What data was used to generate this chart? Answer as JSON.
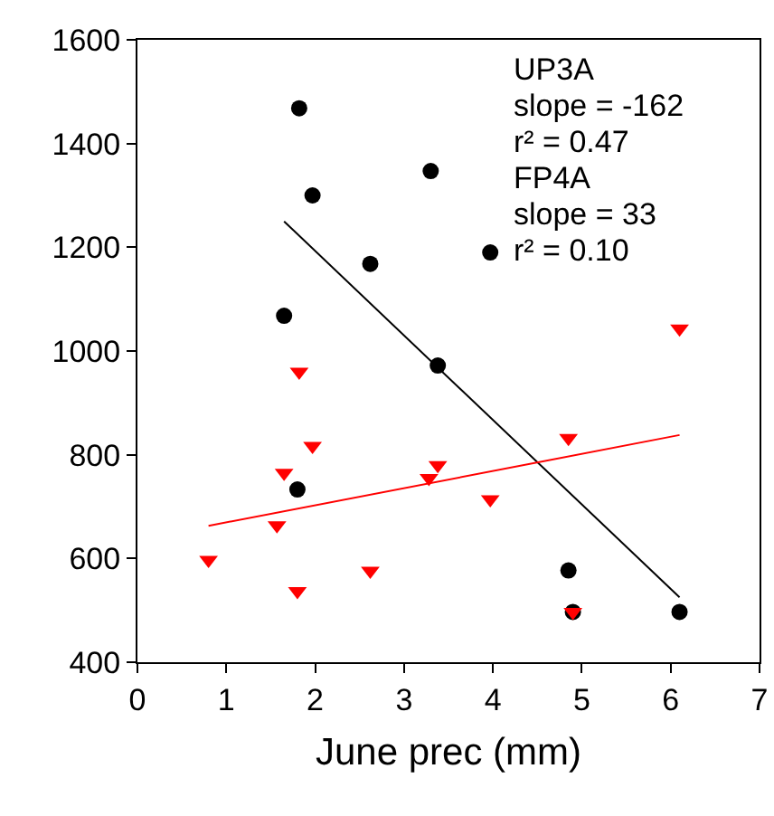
{
  "chart_data": {
    "type": "scatter",
    "xlabel": "June prec (mm)",
    "xlim": [
      0,
      7
    ],
    "xticks": [
      0,
      1,
      2,
      3,
      4,
      5,
      6,
      7
    ],
    "ylim": [
      400,
      1600
    ],
    "yticks": [
      400,
      600,
      800,
      1000,
      1200,
      1400,
      1600
    ],
    "grid": false,
    "annotations": [
      "UP3A",
      "slope = -162",
      "r² = 0.47",
      "FP4A",
      "slope = 33",
      "r² = 0.10"
    ],
    "series": [
      {
        "color": "#000000",
        "marker": "circle",
        "x": [
          1.82,
          1.97,
          3.3,
          2.62,
          3.97,
          1.65,
          3.38,
          1.8,
          4.85,
          4.9,
          6.1
        ],
        "values": [
          1468,
          1300,
          1347,
          1168,
          1190,
          1068,
          972,
          733,
          577,
          497,
          497
        ]
      },
      {
        "color": "#ff0000",
        "marker": "triangle",
        "x": [
          0.8,
          1.57,
          1.65,
          1.82,
          1.97,
          1.8,
          2.62,
          3.28,
          3.38,
          3.97,
          4.85,
          4.9,
          6.1
        ],
        "values": [
          597,
          664,
          765,
          960,
          817,
          537,
          576,
          755,
          780,
          714,
          832,
          497,
          1043
        ]
      },
      {
        "type": "line",
        "color": "#000000",
        "marker": "none",
        "line_style": "solid",
        "x": [
          1.65,
          6.1
        ],
        "values": [
          1250,
          525
        ]
      },
      {
        "type": "line",
        "color": "#ff0000",
        "marker": "none",
        "line_style": "solid",
        "x": [
          0.8,
          6.1
        ],
        "values": [
          663,
          838
        ]
      }
    ]
  }
}
